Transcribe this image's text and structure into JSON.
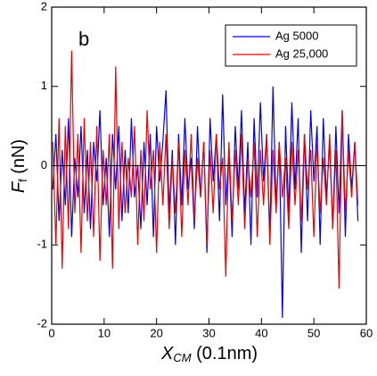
{
  "chart_data": {
    "type": "line",
    "annotation": "b",
    "x_label": {
      "main": "X",
      "sub": "CM",
      "rest": " (0.1nm)"
    },
    "y_label": {
      "main": "F",
      "sub": "f",
      "rest": " (nN)"
    },
    "xlim": [
      0,
      60
    ],
    "xticks": [
      0,
      10,
      20,
      30,
      40,
      50,
      60
    ],
    "ylim": [
      -2,
      2
    ],
    "yticks": [
      -2,
      -1,
      0,
      1,
      2
    ],
    "reference_line": 0,
    "legend": "upper right",
    "x": [
      0.2,
      0.8,
      1.4,
      2,
      2.6,
      3.2,
      3.8,
      4.4,
      5,
      5.6,
      6.2,
      6.8,
      7.4,
      8,
      8.6,
      9.2,
      9.8,
      10.4,
      11,
      11.6,
      12.2,
      12.8,
      13.4,
      14,
      14.6,
      15.2,
      15.8,
      16.4,
      17,
      17.6,
      18.2,
      18.8,
      19.4,
      20,
      20.6,
      21.2,
      21.8,
      22.4,
      23,
      23.6,
      24.2,
      24.8,
      25.4,
      26,
      26.6,
      27.2,
      27.8,
      28.4,
      29,
      29.6,
      30.2,
      30.8,
      31.4,
      32,
      32.6,
      33.2,
      33.8,
      34.4,
      35,
      35.6,
      36.2,
      36.8,
      37.4,
      38,
      38.6,
      39.2,
      39.8,
      40.4,
      41,
      41.6,
      42.2,
      42.8,
      43.4,
      44,
      44.6,
      45.2,
      45.8,
      46.4,
      47,
      47.6,
      48.2,
      48.8,
      49.4,
      50,
      50.6,
      51.2,
      51.8,
      52.4,
      53,
      53.6,
      54.2,
      54.8,
      55.4,
      56,
      56.6,
      57.2,
      57.8,
      58.4
    ],
    "series": [
      {
        "name": "Ag 5000",
        "color": "#0000ee",
        "values": [
          -0.3,
          0.4,
          -0.7,
          0.2,
          -0.5,
          0.6,
          -0.9,
          0.1,
          -0.4,
          0.5,
          -0.6,
          0.2,
          -0.8,
          0.3,
          -0.2,
          0.7,
          -0.5,
          0.1,
          -0.9,
          0.4,
          -0.3,
          0.5,
          -0.7,
          0.2,
          -0.6,
          0.6,
          -0.4,
          0.0,
          -0.8,
          0.3,
          -0.5,
          0.4,
          -0.9,
          0.5,
          -0.2,
          0.3,
          0.95,
          -0.6,
          0.2,
          -1.0,
          0.4,
          -0.5,
          0.6,
          -0.3,
          0.1,
          -0.8,
          0.5,
          -0.4,
          0.3,
          -1.1,
          0.6,
          -0.2,
          0.4,
          -0.7,
          0.9,
          -0.5,
          0.2,
          -0.9,
          0.5,
          -0.3,
          0.7,
          -0.6,
          0.3,
          -1.0,
          0.6,
          -0.4,
          0.8,
          -0.2,
          0.4,
          -0.9,
          1.0,
          -0.5,
          0.3,
          -1.92,
          0.5,
          -0.6,
          0.8,
          -0.3,
          0.6,
          -1.1,
          0.4,
          -0.7,
          0.7,
          -0.2,
          0.5,
          -1.0,
          0.6,
          -0.4,
          0.3,
          -0.8,
          0.5,
          -0.6,
          0.7,
          -0.9,
          0.4,
          -0.3,
          0.3,
          -0.7
        ]
      },
      {
        "name": "Ag 25,000",
        "color": "#ee0000",
        "values": [
          0.3,
          -1.0,
          0.6,
          -1.3,
          0.5,
          -0.8,
          1.45,
          -0.6,
          0.4,
          -1.1,
          0.6,
          -0.7,
          0.3,
          -0.9,
          0.5,
          -1.2,
          0.2,
          -0.5,
          0.4,
          -1.3,
          1.25,
          -0.8,
          0.3,
          -0.6,
          0.1,
          -0.4,
          0.5,
          -1.0,
          0.2,
          -0.7,
          0.7,
          -0.3,
          0.2,
          -1.1,
          0.3,
          -0.5,
          0.4,
          -0.8,
          0.1,
          -0.6,
          0.3,
          -0.9,
          0.2,
          -0.5,
          0.4,
          -0.7,
          0.1,
          -0.4,
          0.3,
          -1.0,
          0.2,
          -0.6,
          0.4,
          -0.3,
          0.1,
          -1.4,
          0.3,
          -0.7,
          0.2,
          -0.5,
          0.4,
          -0.8,
          0.1,
          -0.4,
          0.3,
          -0.9,
          0.2,
          -0.5,
          0.4,
          -1.0,
          0.2,
          -0.6,
          0.3,
          -0.4,
          0.1,
          -0.8,
          0.3,
          -0.5,
          0.2,
          -0.7,
          0.4,
          -0.3,
          0.2,
          -0.9,
          0.3,
          -0.6,
          0.1,
          -0.5,
          0.4,
          -0.8,
          0.2,
          -1.55,
          0.68,
          -0.6,
          0.2,
          -0.4,
          0.3,
          -0.5
        ]
      }
    ]
  }
}
